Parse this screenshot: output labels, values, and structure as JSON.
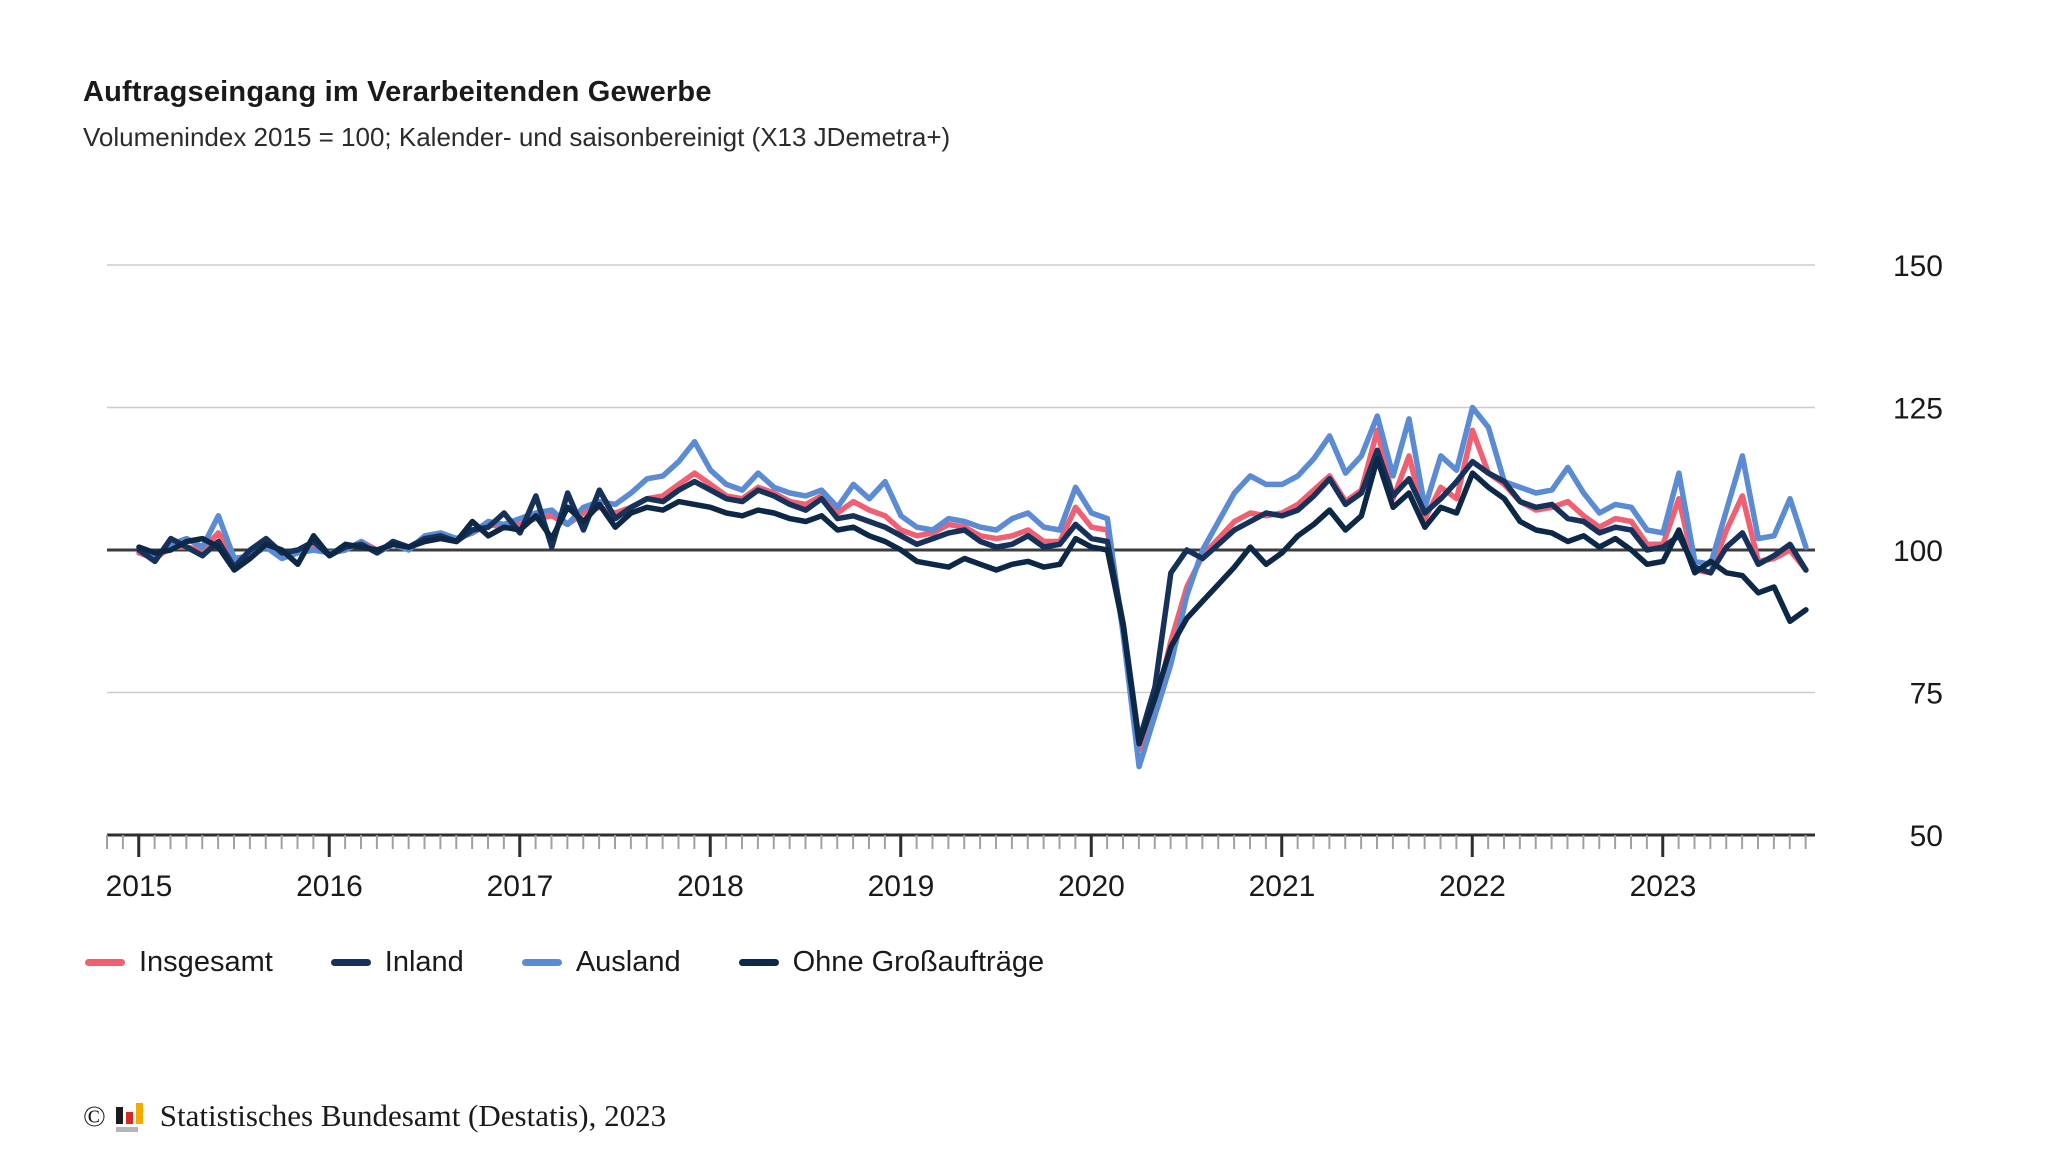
{
  "header": {
    "title": "Auftragseingang im Verarbeitenden Gewerbe",
    "subtitle": "Volumenindex 2015 = 100; Kalender- und saisonbereinigt (X13 JDemetra+)"
  },
  "chart_data": {
    "type": "line",
    "title": "Auftragseingang im Verarbeitenden Gewerbe",
    "subtitle": "Volumenindex 2015 = 100; Kalender- und saisonbereinigt (X13 JDemetra+)",
    "x_unit": "month",
    "x_start": "2015-01",
    "x_end": "2023-10",
    "x_tick_years": [
      2015,
      2016,
      2017,
      2018,
      2019,
      2020,
      2021,
      2022,
      2023
    ],
    "y_ticks": [
      50,
      75,
      100,
      125,
      150
    ],
    "ylim": [
      50,
      150
    ],
    "baseline_value": 100,
    "grid": "horizontal",
    "legend_position": "bottom",
    "series": [
      {
        "name": "Insgesamt",
        "color": "#f06072",
        "values": [
          99.5,
          98.5,
          100.5,
          100.5,
          100,
          103,
          98,
          99,
          100.5,
          99,
          99.5,
          100.5,
          99.5,
          100,
          101.5,
          100,
          101,
          100.5,
          102,
          102.5,
          102,
          103,
          104.5,
          104,
          104.5,
          105.5,
          106,
          104.5,
          106.5,
          107.5,
          106.5,
          107.5,
          109,
          109.5,
          111.5,
          113.5,
          111.5,
          109.5,
          109,
          111,
          110,
          108.5,
          108,
          109.5,
          106.5,
          108.5,
          107,
          106,
          103.5,
          102.5,
          103,
          104.5,
          104,
          102.5,
          102,
          102.5,
          103.5,
          101.5,
          101.5,
          107.5,
          104,
          103.5,
          86,
          65,
          72.5,
          84,
          93.5,
          99,
          102,
          105,
          106.5,
          106,
          106.5,
          108,
          110.5,
          113,
          108.5,
          110.5,
          121,
          109,
          116.5,
          105.5,
          111,
          109,
          121,
          113.5,
          111.5,
          108.5,
          107,
          107.5,
          108.5,
          106,
          104,
          105.5,
          105,
          101,
          101,
          109,
          96.5,
          96,
          103.5,
          109.5,
          98,
          98.5,
          100,
          96.5
        ]
      },
      {
        "name": "Inland",
        "color": "#16325a",
        "values": [
          100,
          98,
          102,
          100.5,
          99,
          101.5,
          97,
          100,
          102,
          99.5,
          100,
          101.5,
          99,
          100.5,
          101,
          99.5,
          101.5,
          100.5,
          102,
          102.5,
          101.5,
          103.5,
          104,
          106.5,
          103,
          109.5,
          100.5,
          110,
          103.5,
          110.5,
          105.5,
          107.5,
          109,
          108.5,
          110.5,
          112,
          110.5,
          109,
          108.5,
          110.5,
          109.5,
          108,
          107,
          109,
          105.5,
          106,
          105,
          104,
          102.5,
          101,
          102,
          103,
          103.5,
          101.5,
          100.5,
          101,
          102.5,
          100.5,
          101,
          104.5,
          102,
          101.5,
          87,
          66.5,
          76,
          96,
          100,
          98.5,
          101,
          103.5,
          105,
          106.5,
          106,
          107,
          109.5,
          112.5,
          108,
          110,
          117.5,
          109.5,
          112.5,
          106.5,
          109,
          112,
          115.5,
          113.5,
          112,
          108.5,
          107.5,
          108,
          105.5,
          105,
          103,
          104,
          103.5,
          100,
          100.5,
          102.5,
          97,
          96,
          100.5,
          103,
          97.5,
          99,
          101,
          96.5
        ]
      },
      {
        "name": "Ausland",
        "color": "#5a8bd4",
        "values": [
          100,
          98.5,
          101,
          102,
          100.5,
          106,
          98.5,
          99,
          100.5,
          98.5,
          99.5,
          100,
          99.5,
          100,
          101.5,
          99.5,
          101,
          100,
          102.5,
          103,
          102,
          103,
          105,
          104.5,
          105.5,
          106.5,
          107,
          104.5,
          107.5,
          108.5,
          108,
          110,
          112.5,
          113,
          115.5,
          119,
          114,
          111.5,
          110.5,
          113.5,
          111,
          110,
          109.5,
          110.5,
          107.5,
          111.5,
          109,
          112,
          106,
          104,
          103.5,
          105.5,
          105,
          104,
          103.5,
          105.5,
          106.5,
          104,
          103.5,
          111,
          106.5,
          105.5,
          85,
          62,
          71,
          80,
          92,
          100,
          105,
          110,
          113,
          111.5,
          111.5,
          113,
          116,
          120,
          113.5,
          116.5,
          123.5,
          113,
          123,
          107.5,
          116.5,
          114,
          125,
          121.5,
          112,
          111,
          110,
          110.5,
          114.5,
          110,
          106.5,
          108,
          107.5,
          103.5,
          103,
          113.5,
          98,
          97.5,
          107,
          116.5,
          102,
          102.5,
          109,
          100.5
        ]
      },
      {
        "name": "Ohne Großaufträge",
        "color": "#0d2847",
        "values": [
          100.5,
          99.5,
          100,
          101.5,
          102,
          100.5,
          96.5,
          98.5,
          101,
          100,
          97.5,
          102.5,
          99,
          101,
          100.5,
          100,
          101,
          100.5,
          101.5,
          102,
          101.5,
          105,
          102.5,
          104,
          103.5,
          106,
          102,
          107.5,
          105,
          108,
          104,
          106.5,
          107.5,
          107,
          108.5,
          108,
          107.5,
          106.5,
          106,
          107,
          106.5,
          105.5,
          105,
          106,
          103.5,
          104,
          102.5,
          101.5,
          100,
          98,
          97.5,
          97,
          98.5,
          97.5,
          96.5,
          97.5,
          98,
          97,
          97.5,
          102,
          100.5,
          100,
          86.5,
          66,
          74,
          83,
          88,
          91,
          94,
          97,
          100.5,
          97.5,
          99.5,
          102.5,
          104.5,
          107,
          103.5,
          106,
          116,
          107.5,
          110,
          104,
          107.5,
          106.5,
          113.5,
          111,
          109,
          105,
          103.5,
          103,
          101.5,
          102.5,
          100.5,
          102,
          100,
          97.5,
          98,
          103.5,
          96,
          98,
          96,
          95.5,
          92.5,
          93.5,
          87.5,
          89.5
        ]
      }
    ],
    "style": {
      "gridline_color": "#cccccc",
      "baseline_color": "#3c3c3c",
      "axis_color": "#2e2e2e",
      "minor_tick_color": "#a0a0a0",
      "label_color": "#1a1a1a"
    }
  },
  "footer": {
    "copyright_symbol": "©",
    "source": "Statistisches Bundesamt (Destatis), 2023",
    "logo_name": "destatis-bar-chart-logo"
  }
}
